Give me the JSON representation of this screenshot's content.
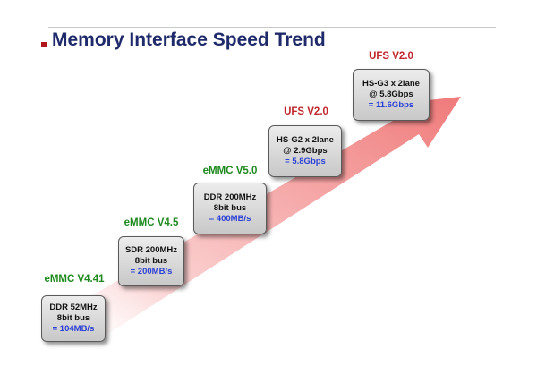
{
  "title": "Memory Interface Speed Trend",
  "colors": {
    "title": "#1f2a6b",
    "emmc_label": "#1f8a1f",
    "ufs_label": "#c0272d",
    "speed_text": "#2a3fd6",
    "arrow": "#f28b8b"
  },
  "steps": [
    {
      "name": "eMMC V4.41",
      "line1": "DDR 52MHz",
      "line2": "8bit bus",
      "speed": "= 104MB/s"
    },
    {
      "name": "eMMC V4.5",
      "line1": "SDR 200MHz",
      "line2": "8bit bus",
      "speed": "= 200MB/s"
    },
    {
      "name": "eMMC V5.0",
      "line1": "DDR 200MHz",
      "line2": "8bit bus",
      "speed": "= 400MB/s"
    },
    {
      "name": "UFS V2.0",
      "line1": "HS-G2 x 2lane",
      "line2": "@ 2.9Gbps",
      "speed": "= 5.8Gbps"
    },
    {
      "name": "UFS V2.0",
      "line1": "HS-G3 x 2lane",
      "line2": "@ 5.8Gbps",
      "speed": "= 11.6Gbps"
    }
  ]
}
